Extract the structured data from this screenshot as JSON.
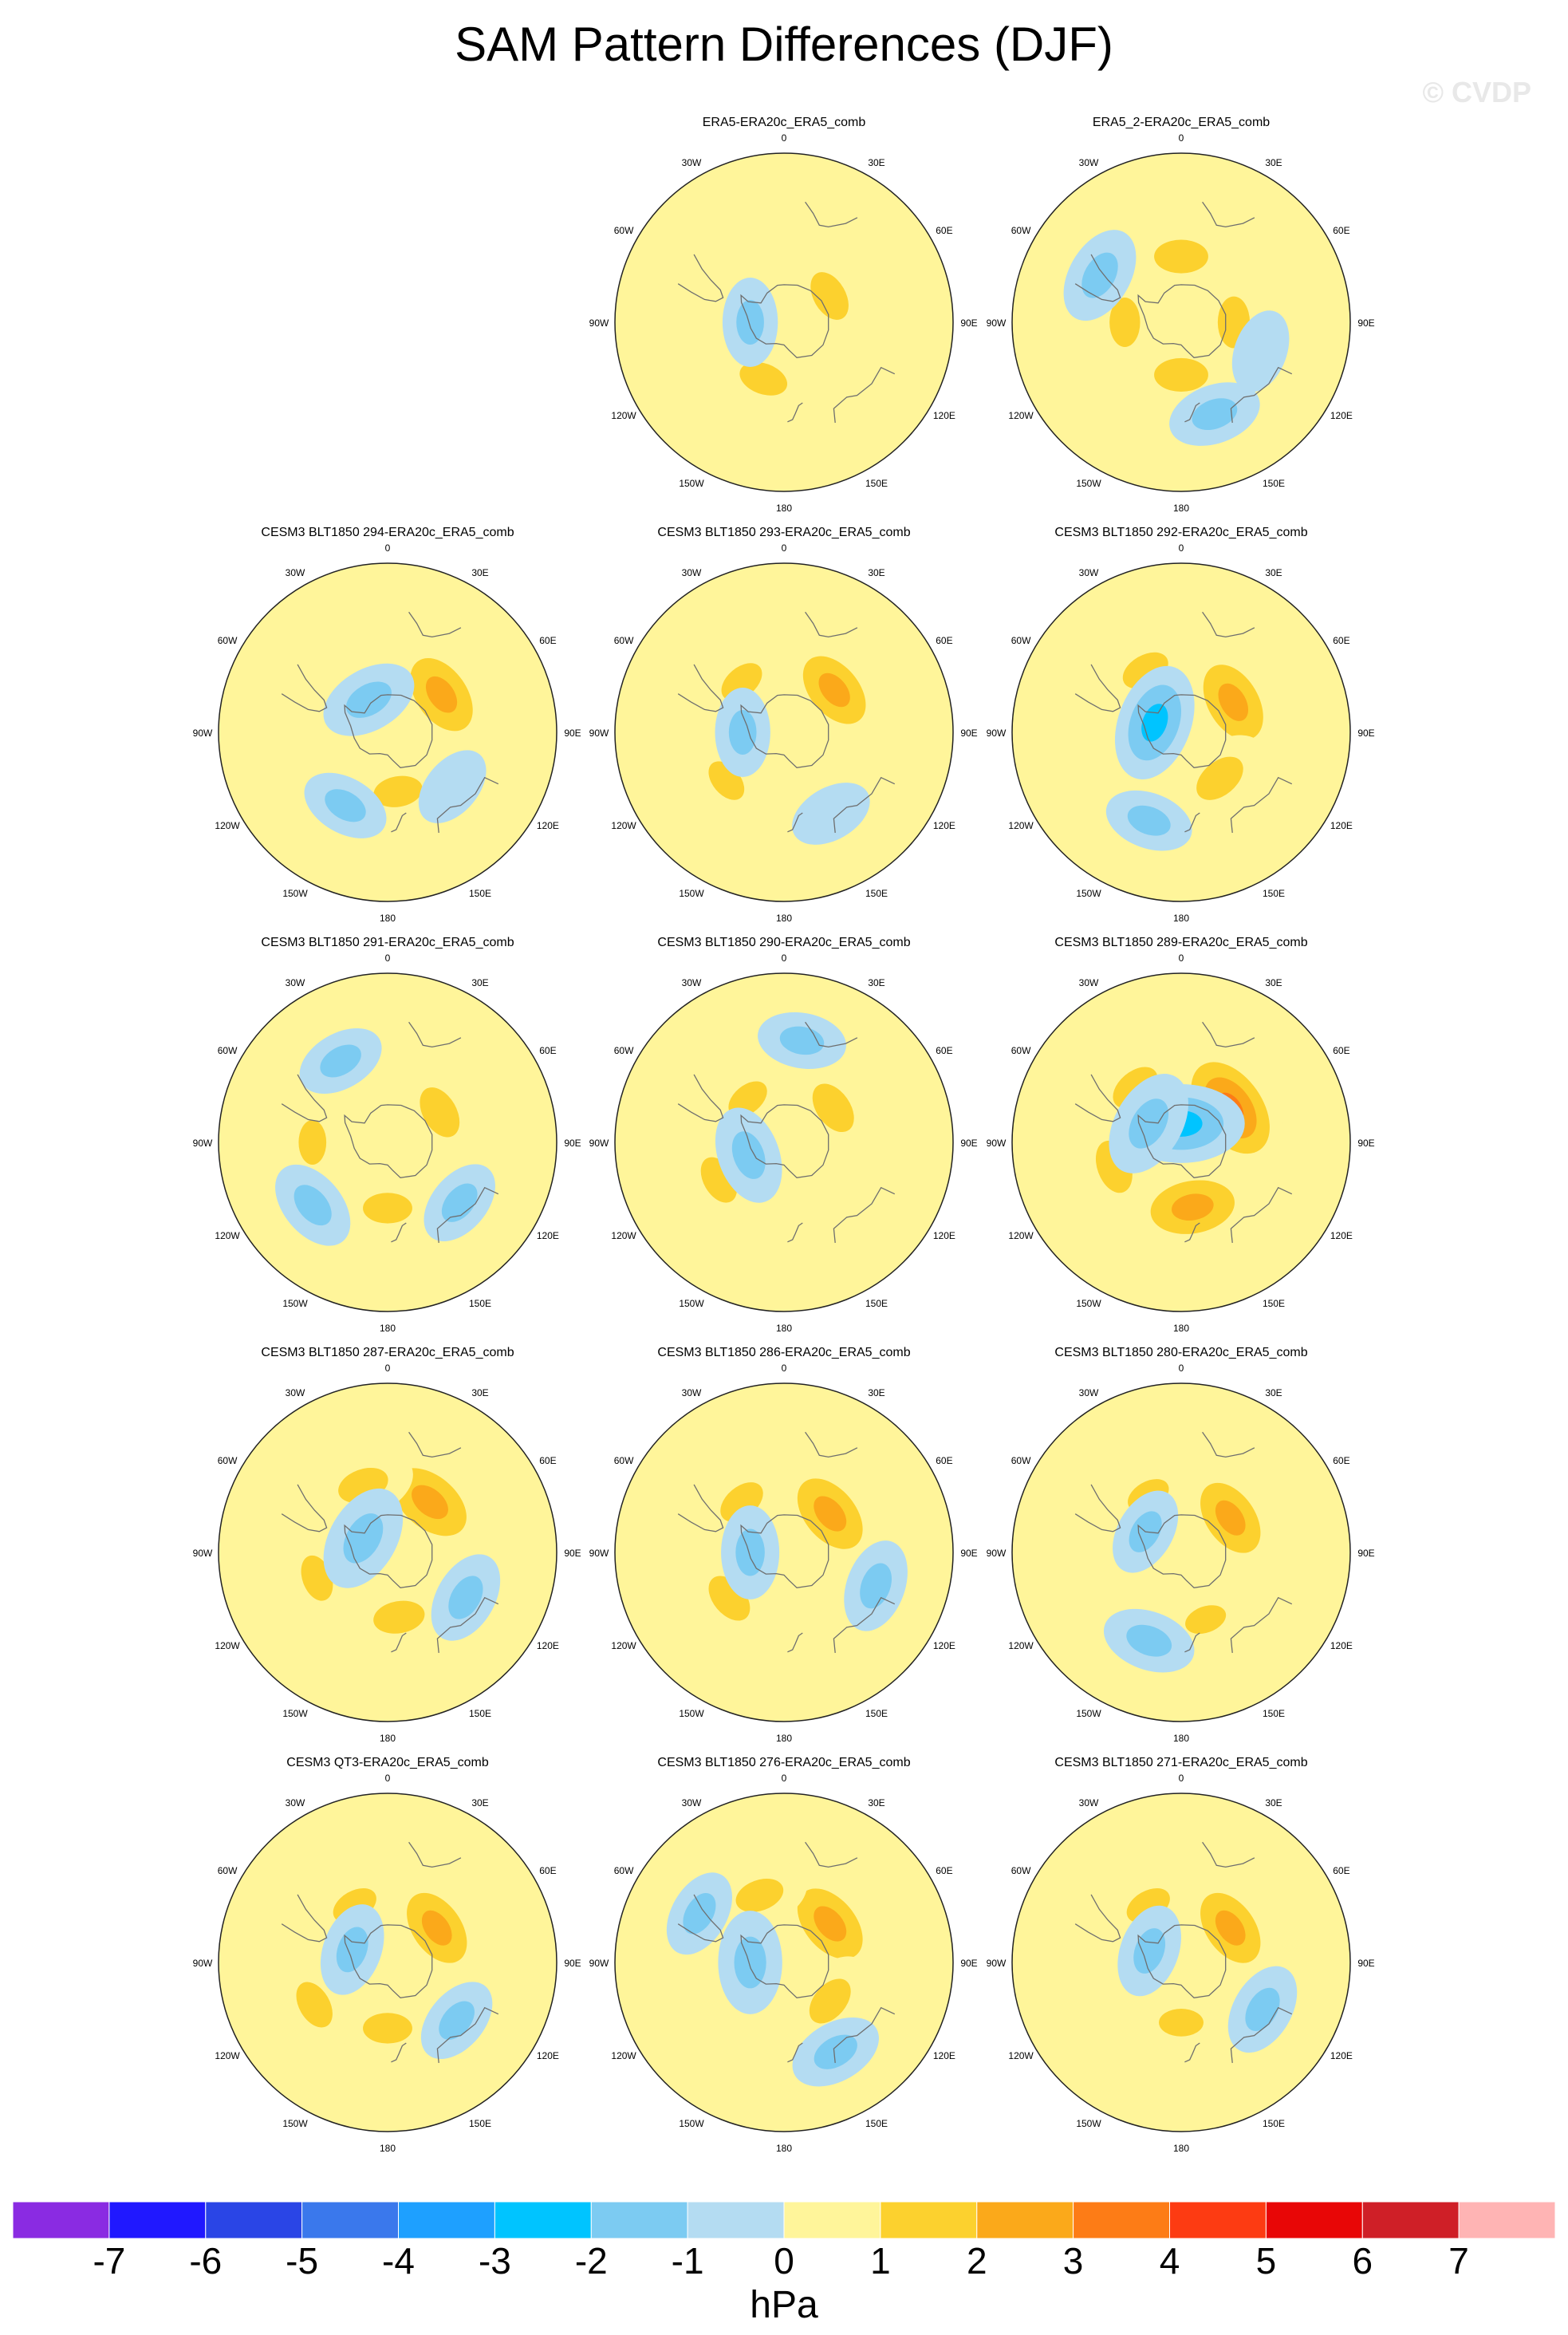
{
  "title": "SAM Pattern Differences (DJF)",
  "watermark": "© CVDP",
  "colors": {
    "levels": [
      "#8a2be2",
      "#2018ff",
      "#2a45e6",
      "#3a78ec",
      "#1ea0ff",
      "#00c4ff",
      "#7ccbf2",
      "#b4dcf2",
      "#fff59a",
      "#fcd12e",
      "#fba91a",
      "#fd7c16",
      "#fd3b12",
      "#e80606",
      "#cf1f27",
      "#ffb4b4"
    ],
    "land": "#6e6e6e",
    "frame": "#222222"
  },
  "lon_labels": [
    "0",
    "30E",
    "60E",
    "90E",
    "120E",
    "150E",
    "180",
    "150W",
    "120W",
    "90W",
    "60W",
    "30W"
  ],
  "chart_data": {
    "type": "contour-map",
    "projection": "south-polar-stereographic",
    "variable": "SAM pattern difference",
    "units": "hPa",
    "colorbar": {
      "label": "hPa",
      "ticks": [
        "-7",
        "-6",
        "-5",
        "-4",
        "-3",
        "-2",
        "-1",
        "0",
        "1",
        "2",
        "3",
        "4",
        "5",
        "6",
        "7"
      ],
      "ticks_values": [
        -7,
        -6,
        -5,
        -4,
        -3,
        -2,
        -1,
        0,
        1,
        2,
        3,
        4,
        5,
        6,
        7
      ],
      "range": [
        -8,
        8
      ]
    },
    "panels": [
      {
        "title": "ERA5-ERA20c_ERA5_comb",
        "blobs": [
          {
            "lon": 315,
            "lat": -52,
            "value": 1.0,
            "amp": 0.6
          },
          {
            "lon": 240,
            "lat": -55,
            "value": 0.7,
            "amp": 0.4
          },
          {
            "lon": 95,
            "lat": -50,
            "value": 0.6,
            "amp": 0.3
          },
          {
            "lon": 60,
            "lat": -62,
            "value": 1.6,
            "amp": 0.9
          },
          {
            "lon": 200,
            "lat": -58,
            "value": 1.5,
            "amp": 0.8
          },
          {
            "lon": 270,
            "lat": -72,
            "value": -1.2,
            "amp": 0.6
          }
        ]
      },
      {
        "title": "ERA5_2-ERA20c_ERA5_comb",
        "blobs": [
          {
            "lon": 0,
            "lat": -55,
            "value": 1.6,
            "amp": 1.0
          },
          {
            "lon": 90,
            "lat": -62,
            "value": 1.6,
            "amp": 0.9
          },
          {
            "lon": 180,
            "lat": -62,
            "value": 1.6,
            "amp": 1.0
          },
          {
            "lon": 270,
            "lat": -60,
            "value": 1.4,
            "amp": 0.8
          },
          {
            "lon": 300,
            "lat": -40,
            "value": -1.5,
            "amp": 0.8
          },
          {
            "lon": 160,
            "lat": -38,
            "value": -1.3,
            "amp": 0.7
          },
          {
            "lon": 110,
            "lat": -45,
            "value": -1.0,
            "amp": 0.5
          }
        ]
      },
      {
        "title": "CESM3 BLT1850 294-ERA20c_ERA5_comb",
        "blobs": [
          {
            "lon": 55,
            "lat": -55,
            "value": 2.6,
            "amp": 1.3
          },
          {
            "lon": 170,
            "lat": -58,
            "value": 1.5,
            "amp": 0.8
          },
          {
            "lon": 330,
            "lat": -70,
            "value": -1.3,
            "amp": 0.8
          },
          {
            "lon": 210,
            "lat": -45,
            "value": -1.2,
            "amp": 0.6
          },
          {
            "lon": 130,
            "lat": -45,
            "value": -1.0,
            "amp": 0.5
          }
        ]
      },
      {
        "title": "CESM3 BLT1850 293-ERA20c_ERA5_comb",
        "blobs": [
          {
            "lon": 50,
            "lat": -55,
            "value": 2.5,
            "amp": 1.2
          },
          {
            "lon": 320,
            "lat": -55,
            "value": 1.4,
            "amp": 0.7
          },
          {
            "lon": 230,
            "lat": -50,
            "value": 1.2,
            "amp": 0.6
          },
          {
            "lon": 270,
            "lat": -68,
            "value": -1.2,
            "amp": 0.6
          },
          {
            "lon": 150,
            "lat": -40,
            "value": -1.0,
            "amp": 0.5
          }
        ]
      },
      {
        "title": "CESM3 BLT1850 292-ERA20c_ERA5_comb",
        "blobs": [
          {
            "lon": 60,
            "lat": -58,
            "value": 2.6,
            "amp": 1.3
          },
          {
            "lon": 140,
            "lat": -58,
            "value": 1.8,
            "amp": 1.0
          },
          {
            "lon": 330,
            "lat": -52,
            "value": 1.5,
            "amp": 0.8
          },
          {
            "lon": 290,
            "lat": -75,
            "value": -2.3,
            "amp": 1.2
          },
          {
            "lon": 200,
            "lat": -40,
            "value": -1.2,
            "amp": 0.6
          }
        ]
      },
      {
        "title": "CESM3 BLT1850 291-ERA20c_ERA5_comb",
        "blobs": [
          {
            "lon": 60,
            "lat": -58,
            "value": 1.7,
            "amp": 1.0
          },
          {
            "lon": 180,
            "lat": -55,
            "value": 1.5,
            "amp": 0.8
          },
          {
            "lon": 270,
            "lat": -50,
            "value": 1.2,
            "amp": 0.6
          },
          {
            "lon": 230,
            "lat": -38,
            "value": -1.3,
            "amp": 0.7
          },
          {
            "lon": 130,
            "lat": -40,
            "value": -1.2,
            "amp": 0.6
          },
          {
            "lon": 330,
            "lat": -40,
            "value": -1.1,
            "amp": 0.6
          }
        ]
      },
      {
        "title": "CESM3 BLT1850 290-ERA20c_ERA5_comb",
        "blobs": [
          {
            "lon": 55,
            "lat": -58,
            "value": 1.8,
            "amp": 1.0
          },
          {
            "lon": 320,
            "lat": -60,
            "value": 1.3,
            "amp": 0.6
          },
          {
            "lon": 240,
            "lat": -50,
            "value": 1.5,
            "amp": 0.8
          },
          {
            "lon": 250,
            "lat": -70,
            "value": -1.4,
            "amp": 0.8
          },
          {
            "lon": 10,
            "lat": -35,
            "value": -1.2,
            "amp": 0.6
          }
        ]
      },
      {
        "title": "CESM3 BLT1850 289-ERA20c_ERA5_comb",
        "blobs": [
          {
            "lon": 55,
            "lat": -58,
            "value": 3.4,
            "amp": 1.6
          },
          {
            "lon": 170,
            "lat": -55,
            "value": 2.6,
            "amp": 1.4
          },
          {
            "lon": 250,
            "lat": -52,
            "value": 1.9,
            "amp": 1.0
          },
          {
            "lon": 320,
            "lat": -52,
            "value": 1.8,
            "amp": 0.9
          },
          {
            "lon": 0,
            "lat": -80,
            "value": -2.6,
            "amp": 1.4
          },
          {
            "lon": 300,
            "lat": -70,
            "value": -2.0,
            "amp": 1.0
          }
        ]
      },
      {
        "title": "CESM3 BLT1850 287-ERA20c_ERA5_comb",
        "blobs": [
          {
            "lon": 40,
            "lat": -55,
            "value": 2.8,
            "amp": 1.4
          },
          {
            "lon": 340,
            "lat": -52,
            "value": 1.8,
            "amp": 0.9
          },
          {
            "lon": 170,
            "lat": -55,
            "value": 1.7,
            "amp": 0.9
          },
          {
            "lon": 250,
            "lat": -50,
            "value": 1.4,
            "amp": 0.7
          },
          {
            "lon": 300,
            "lat": -75,
            "value": -1.8,
            "amp": 1.0
          },
          {
            "lon": 120,
            "lat": -42,
            "value": -1.3,
            "amp": 0.7
          }
        ]
      },
      {
        "title": "CESM3 BLT1850 286-ERA20c_ERA5_comb",
        "blobs": [
          {
            "lon": 50,
            "lat": -58,
            "value": 2.8,
            "amp": 1.3
          },
          {
            "lon": 320,
            "lat": -55,
            "value": 1.6,
            "amp": 0.8
          },
          {
            "lon": 230,
            "lat": -52,
            "value": 1.7,
            "amp": 0.9
          },
          {
            "lon": 270,
            "lat": -72,
            "value": -1.3,
            "amp": 0.7
          },
          {
            "lon": 110,
            "lat": -38,
            "value": -1.3,
            "amp": 0.7
          }
        ]
      },
      {
        "title": "CESM3 BLT1850 280-ERA20c_ERA5_comb",
        "blobs": [
          {
            "lon": 55,
            "lat": -58,
            "value": 2.5,
            "amp": 1.2
          },
          {
            "lon": 330,
            "lat": -55,
            "value": 1.3,
            "amp": 0.6
          },
          {
            "lon": 160,
            "lat": -52,
            "value": 1.1,
            "amp": 0.5
          },
          {
            "lon": 200,
            "lat": -40,
            "value": -1.3,
            "amp": 0.7
          },
          {
            "lon": 300,
            "lat": -68,
            "value": -1.2,
            "amp": 0.6
          }
        ]
      },
      {
        "title": "CESM3 QT3-ERA20c_ERA5_comb",
        "blobs": [
          {
            "lon": 55,
            "lat": -58,
            "value": 2.5,
            "amp": 1.2
          },
          {
            "lon": 330,
            "lat": -55,
            "value": 1.4,
            "amp": 0.7
          },
          {
            "lon": 180,
            "lat": -55,
            "value": 1.6,
            "amp": 0.8
          },
          {
            "lon": 240,
            "lat": -45,
            "value": 1.5,
            "amp": 0.8
          },
          {
            "lon": 290,
            "lat": -70,
            "value": -1.3,
            "amp": 0.7
          },
          {
            "lon": 130,
            "lat": -42,
            "value": -1.2,
            "amp": 0.6
          }
        ]
      },
      {
        "title": "CESM3 BLT1850 276-ERA20c_ERA5_comb",
        "blobs": [
          {
            "lon": 50,
            "lat": -58,
            "value": 2.7,
            "amp": 1.3
          },
          {
            "lon": 130,
            "lat": -58,
            "value": 1.8,
            "amp": 0.9
          },
          {
            "lon": 340,
            "lat": -52,
            "value": 1.5,
            "amp": 0.8
          },
          {
            "lon": 270,
            "lat": -72,
            "value": -1.7,
            "amp": 0.9
          },
          {
            "lon": 150,
            "lat": -35,
            "value": -1.4,
            "amp": 0.7
          },
          {
            "lon": 300,
            "lat": -38,
            "value": -1.1,
            "amp": 0.6
          }
        ]
      },
      {
        "title": "CESM3 BLT1850 271-ERA20c_ERA5_comb",
        "blobs": [
          {
            "lon": 55,
            "lat": -58,
            "value": 2.5,
            "amp": 1.2
          },
          {
            "lon": 330,
            "lat": -55,
            "value": 1.4,
            "amp": 0.7
          },
          {
            "lon": 180,
            "lat": -58,
            "value": 1.2,
            "amp": 0.6
          },
          {
            "lon": 290,
            "lat": -72,
            "value": -1.3,
            "amp": 0.7
          },
          {
            "lon": 120,
            "lat": -40,
            "value": -1.3,
            "amp": 0.7
          }
        ]
      }
    ]
  }
}
